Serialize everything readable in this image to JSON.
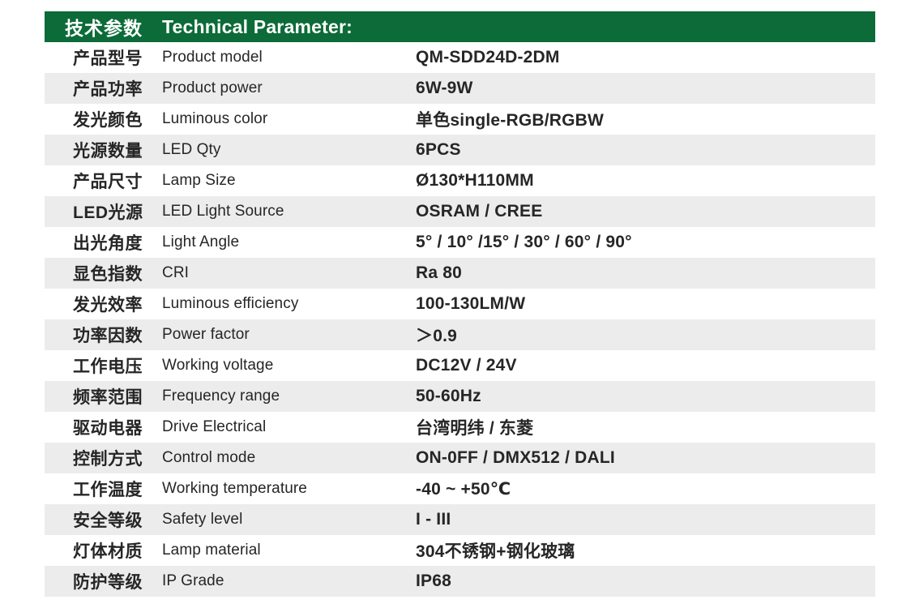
{
  "header": {
    "title_cn": "技术参数",
    "title_en": "Technical Parameter:"
  },
  "colors": {
    "header_bg": "#0c6b38",
    "row_alt_bg": "#ececec",
    "text": "#262626",
    "header_text": "#ffffff"
  },
  "table": {
    "rows": [
      {
        "label_cn": "产品型号",
        "label_en": "Product model",
        "value": "QM-SDD24D-2DM"
      },
      {
        "label_cn": "产品功率",
        "label_en": "Product power",
        "value": "6W-9W"
      },
      {
        "label_cn": "发光颜色",
        "label_en": "Luminous color",
        "value": "单色single-RGB/RGBW"
      },
      {
        "label_cn": "光源数量",
        "label_en": "LED Qty",
        "value": "6PCS"
      },
      {
        "label_cn": "产品尺寸",
        "label_en": "Lamp Size",
        "value": "Ø130*H110MM"
      },
      {
        "label_cn": "LED光源",
        "label_en": "LED Light Source",
        "value": "OSRAM / CREE"
      },
      {
        "label_cn": "出光角度",
        "label_en": "Light Angle",
        "value": "5° / 10° /15° / 30° / 60° / 90°"
      },
      {
        "label_cn": "显色指数",
        "label_en": "CRI",
        "value": "Ra 80"
      },
      {
        "label_cn": "发光效率",
        "label_en": "Luminous efficiency",
        "value": "100-130LM/W"
      },
      {
        "label_cn": "功率因数",
        "label_en": "Power factor",
        "value": "＞0.9"
      },
      {
        "label_cn": "工作电压",
        "label_en": "Working voltage",
        "value": "DC12V / 24V"
      },
      {
        "label_cn": "频率范围",
        "label_en": "Frequency range",
        "value": "50-60Hz"
      },
      {
        "label_cn": "驱动电器",
        "label_en": "Drive Electrical",
        "value": "台湾明纬 / 东菱"
      },
      {
        "label_cn": "控制方式",
        "label_en": "Control mode",
        "value": "ON-0FF / DMX512 / DALI"
      },
      {
        "label_cn": "工作温度",
        "label_en": "Working temperature",
        "value": "-40 ~ +50℃"
      },
      {
        "label_cn": "安全等级",
        "label_en": "Safety level",
        "value": "I - III"
      },
      {
        "label_cn": "灯体材质",
        "label_en": "Lamp material",
        "value": "304不锈钢+钢化玻璃"
      },
      {
        "label_cn": "防护等级",
        "label_en": "IP Grade",
        "value": "IP68"
      }
    ]
  }
}
